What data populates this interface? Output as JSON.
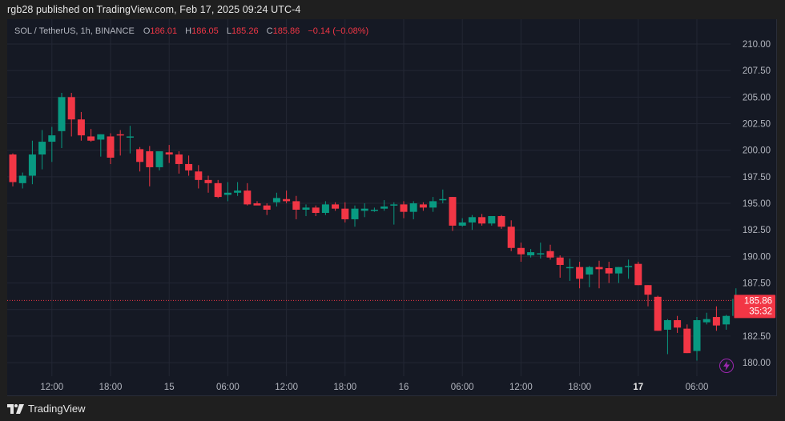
{
  "header": {
    "published": "rgb28 published on TradingView.com, Feb 17, 2025 09:24 UTC-4"
  },
  "legend": {
    "symbol": "SOL / TetherUS, 1h, BINANCE",
    "o_label": "O",
    "o_value": "186.01",
    "h_label": "H",
    "h_value": "186.05",
    "l_label": "L",
    "l_value": "185.26",
    "c_label": "C",
    "c_value": "185.86",
    "change": "−0.14 (−0.08%)"
  },
  "price_label": {
    "price": "185.86",
    "countdown": "35:32"
  },
  "footer": {
    "brand": "TradingView"
  },
  "colors": {
    "up": "#089981",
    "down": "#f23645",
    "background": "#151924",
    "grid": "#232734",
    "axis_text": "#b2b5be",
    "bolt": "#9c27b0"
  },
  "chart_data": {
    "type": "candlestick",
    "title": "SOL / TetherUS, 1h, BINANCE",
    "xlabel": "",
    "ylabel": "",
    "ylim": [
      180,
      210
    ],
    "y_ticks": [
      "210.00",
      "207.50",
      "205.00",
      "202.50",
      "200.00",
      "197.50",
      "195.00",
      "192.50",
      "190.00",
      "187.50",
      "182.50",
      "180.00"
    ],
    "x_ticks": [
      {
        "label": "12:00",
        "index": 4
      },
      {
        "label": "18:00",
        "index": 10
      },
      {
        "label": "15",
        "index": 16
      },
      {
        "label": "06:00",
        "index": 22
      },
      {
        "label": "12:00",
        "index": 28
      },
      {
        "label": "18:00",
        "index": 34
      },
      {
        "label": "16",
        "index": 40
      },
      {
        "label": "06:00",
        "index": 46
      },
      {
        "label": "12:00",
        "index": 52
      },
      {
        "label": "18:00",
        "index": 58
      },
      {
        "label": "17",
        "index": 64,
        "bold": true
      },
      {
        "label": "06:00",
        "index": 70
      }
    ],
    "grid": true,
    "last_price": 185.86,
    "candles": [
      {
        "o": 199.6,
        "h": 199.7,
        "l": 196.6,
        "c": 197.0
      },
      {
        "o": 196.9,
        "h": 197.9,
        "l": 196.4,
        "c": 197.6
      },
      {
        "o": 197.6,
        "h": 200.9,
        "l": 196.8,
        "c": 199.6
      },
      {
        "o": 199.6,
        "h": 201.9,
        "l": 198.2,
        "c": 200.8
      },
      {
        "o": 200.8,
        "h": 202.2,
        "l": 198.9,
        "c": 201.4
      },
      {
        "o": 201.8,
        "h": 205.4,
        "l": 200.2,
        "c": 205.0
      },
      {
        "o": 205.0,
        "h": 205.4,
        "l": 201.3,
        "c": 202.9
      },
      {
        "o": 202.9,
        "h": 203.6,
        "l": 200.9,
        "c": 201.4
      },
      {
        "o": 201.3,
        "h": 202.0,
        "l": 200.8,
        "c": 200.9
      },
      {
        "o": 201.0,
        "h": 201.5,
        "l": 199.4,
        "c": 201.5
      },
      {
        "o": 201.3,
        "h": 201.6,
        "l": 198.7,
        "c": 199.3
      },
      {
        "o": 201.5,
        "h": 201.9,
        "l": 199.5,
        "c": 201.4
      },
      {
        "o": 201.3,
        "h": 202.3,
        "l": 199.7,
        "c": 201.3
      },
      {
        "o": 200.1,
        "h": 200.3,
        "l": 198.0,
        "c": 198.9
      },
      {
        "o": 199.9,
        "h": 200.4,
        "l": 196.6,
        "c": 198.4
      },
      {
        "o": 198.4,
        "h": 199.8,
        "l": 198.1,
        "c": 199.9
      },
      {
        "o": 199.8,
        "h": 200.5,
        "l": 198.8,
        "c": 199.6
      },
      {
        "o": 199.6,
        "h": 199.9,
        "l": 197.8,
        "c": 198.7
      },
      {
        "o": 198.7,
        "h": 199.5,
        "l": 197.6,
        "c": 198.1
      },
      {
        "o": 198.0,
        "h": 198.6,
        "l": 196.4,
        "c": 197.2
      },
      {
        "o": 197.2,
        "h": 197.6,
        "l": 196.0,
        "c": 196.9
      },
      {
        "o": 196.9,
        "h": 197.2,
        "l": 195.5,
        "c": 195.6
      },
      {
        "o": 195.8,
        "h": 197.0,
        "l": 195.2,
        "c": 196.0
      },
      {
        "o": 196.0,
        "h": 197.0,
        "l": 195.7,
        "c": 196.2
      },
      {
        "o": 196.2,
        "h": 196.9,
        "l": 194.8,
        "c": 194.9
      },
      {
        "o": 195.0,
        "h": 195.2,
        "l": 194.9,
        "c": 194.8
      },
      {
        "o": 194.8,
        "h": 195.0,
        "l": 193.9,
        "c": 194.4
      },
      {
        "o": 195.1,
        "h": 196.0,
        "l": 194.7,
        "c": 195.5
      },
      {
        "o": 195.4,
        "h": 196.2,
        "l": 195.0,
        "c": 195.2
      },
      {
        "o": 195.2,
        "h": 195.7,
        "l": 193.5,
        "c": 194.4
      },
      {
        "o": 194.4,
        "h": 194.9,
        "l": 193.8,
        "c": 194.6
      },
      {
        "o": 194.6,
        "h": 194.8,
        "l": 193.8,
        "c": 194.1
      },
      {
        "o": 194.1,
        "h": 195.2,
        "l": 193.9,
        "c": 194.9
      },
      {
        "o": 194.9,
        "h": 195.1,
        "l": 194.3,
        "c": 194.5
      },
      {
        "o": 194.5,
        "h": 195.1,
        "l": 193.2,
        "c": 193.5
      },
      {
        "o": 193.5,
        "h": 194.8,
        "l": 192.8,
        "c": 194.5
      },
      {
        "o": 194.3,
        "h": 195.0,
        "l": 193.7,
        "c": 194.5
      },
      {
        "o": 194.3,
        "h": 194.6,
        "l": 194.2,
        "c": 194.4
      },
      {
        "o": 194.5,
        "h": 195.3,
        "l": 194.3,
        "c": 194.7
      },
      {
        "o": 194.8,
        "h": 195.1,
        "l": 193.0,
        "c": 194.9
      },
      {
        "o": 194.9,
        "h": 195.2,
        "l": 193.6,
        "c": 194.2
      },
      {
        "o": 194.2,
        "h": 195.2,
        "l": 193.5,
        "c": 195.0
      },
      {
        "o": 194.9,
        "h": 195.1,
        "l": 194.3,
        "c": 194.6
      },
      {
        "o": 194.6,
        "h": 195.6,
        "l": 194.2,
        "c": 195.2
      },
      {
        "o": 195.3,
        "h": 196.3,
        "l": 195.0,
        "c": 195.4
      },
      {
        "o": 195.6,
        "h": 195.6,
        "l": 192.4,
        "c": 192.9
      },
      {
        "o": 192.9,
        "h": 193.6,
        "l": 192.8,
        "c": 193.2
      },
      {
        "o": 193.2,
        "h": 193.9,
        "l": 192.5,
        "c": 193.7
      },
      {
        "o": 193.7,
        "h": 194.0,
        "l": 192.9,
        "c": 193.1
      },
      {
        "o": 193.1,
        "h": 193.8,
        "l": 192.9,
        "c": 193.8
      },
      {
        "o": 193.8,
        "h": 193.9,
        "l": 192.6,
        "c": 192.8
      },
      {
        "o": 192.8,
        "h": 193.4,
        "l": 190.5,
        "c": 190.8
      },
      {
        "o": 190.8,
        "h": 191.3,
        "l": 189.5,
        "c": 190.2
      },
      {
        "o": 190.1,
        "h": 190.7,
        "l": 189.9,
        "c": 190.4
      },
      {
        "o": 190.3,
        "h": 191.3,
        "l": 189.8,
        "c": 190.3
      },
      {
        "o": 190.5,
        "h": 191.1,
        "l": 189.7,
        "c": 189.9
      },
      {
        "o": 189.9,
        "h": 190.1,
        "l": 188.0,
        "c": 189.2
      },
      {
        "o": 189.0,
        "h": 189.8,
        "l": 187.7,
        "c": 189.0
      },
      {
        "o": 189.0,
        "h": 189.5,
        "l": 187.0,
        "c": 187.9
      },
      {
        "o": 188.3,
        "h": 189.1,
        "l": 187.1,
        "c": 189.0
      },
      {
        "o": 189.0,
        "h": 189.6,
        "l": 187.0,
        "c": 188.8
      },
      {
        "o": 188.9,
        "h": 189.5,
        "l": 187.5,
        "c": 188.4
      },
      {
        "o": 188.4,
        "h": 189.0,
        "l": 187.5,
        "c": 189.0
      },
      {
        "o": 189.0,
        "h": 189.7,
        "l": 187.9,
        "c": 189.1
      },
      {
        "o": 189.3,
        "h": 189.5,
        "l": 187.3,
        "c": 187.3
      },
      {
        "o": 187.3,
        "h": 187.3,
        "l": 185.3,
        "c": 186.4
      },
      {
        "o": 186.2,
        "h": 186.3,
        "l": 183.0,
        "c": 183.0
      },
      {
        "o": 183.1,
        "h": 184.1,
        "l": 180.8,
        "c": 184.0
      },
      {
        "o": 184.0,
        "h": 184.4,
        "l": 182.8,
        "c": 183.3
      },
      {
        "o": 183.2,
        "h": 183.6,
        "l": 180.9,
        "c": 180.9
      },
      {
        "o": 181.1,
        "h": 184.3,
        "l": 180.2,
        "c": 184.0
      },
      {
        "o": 183.8,
        "h": 184.7,
        "l": 183.6,
        "c": 184.1
      },
      {
        "o": 184.3,
        "h": 185.3,
        "l": 183.0,
        "c": 183.5
      },
      {
        "o": 183.6,
        "h": 184.5,
        "l": 183.1,
        "c": 184.4
      },
      {
        "o": 184.4,
        "h": 187.0,
        "l": 184.2,
        "c": 186.0
      },
      {
        "o": 186.01,
        "h": 186.05,
        "l": 185.26,
        "c": 185.86
      }
    ]
  }
}
